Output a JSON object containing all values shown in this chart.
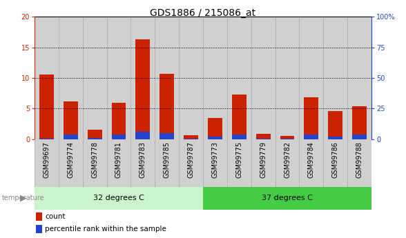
{
  "title": "GDS1886 / 215086_at",
  "categories": [
    "GSM99697",
    "GSM99774",
    "GSM99778",
    "GSM99781",
    "GSM99783",
    "GSM99785",
    "GSM99787",
    "GSM99773",
    "GSM99775",
    "GSM99779",
    "GSM99782",
    "GSM99784",
    "GSM99786",
    "GSM99788"
  ],
  "count_values": [
    10.6,
    6.2,
    1.5,
    5.9,
    16.3,
    10.7,
    0.7,
    3.5,
    7.3,
    0.85,
    0.55,
    6.9,
    4.6,
    5.4
  ],
  "percentile_values": [
    0.3,
    3.7,
    1.1,
    3.7,
    6.2,
    5.2,
    0.3,
    2.1,
    3.9,
    0.3,
    0.55,
    4.1,
    2.2,
    3.6
  ],
  "count_color": "#cc2200",
  "percentile_color": "#2244cc",
  "ylim_left": [
    0,
    20
  ],
  "ylim_right": [
    0,
    100
  ],
  "yticks_left": [
    0,
    5,
    10,
    15,
    20
  ],
  "yticks_right": [
    0,
    25,
    50,
    75,
    100
  ],
  "ytick_labels_left": [
    "0",
    "5",
    "10",
    "15",
    "20"
  ],
  "ytick_labels_right": [
    "0",
    "25",
    "50",
    "75",
    "100%"
  ],
  "group1_label": "32 degrees C",
  "group2_label": "37 degrees C",
  "group1_count": 7,
  "group2_count": 7,
  "temperature_label": "temperature",
  "legend_count": "count",
  "legend_percentile": "percentile rank within the sample",
  "group1_color": "#ccf5cc",
  "group2_color": "#44cc44",
  "bar_bg_color": "#d0d0d0",
  "title_fontsize": 10,
  "tick_fontsize": 7,
  "bar_width": 0.6
}
